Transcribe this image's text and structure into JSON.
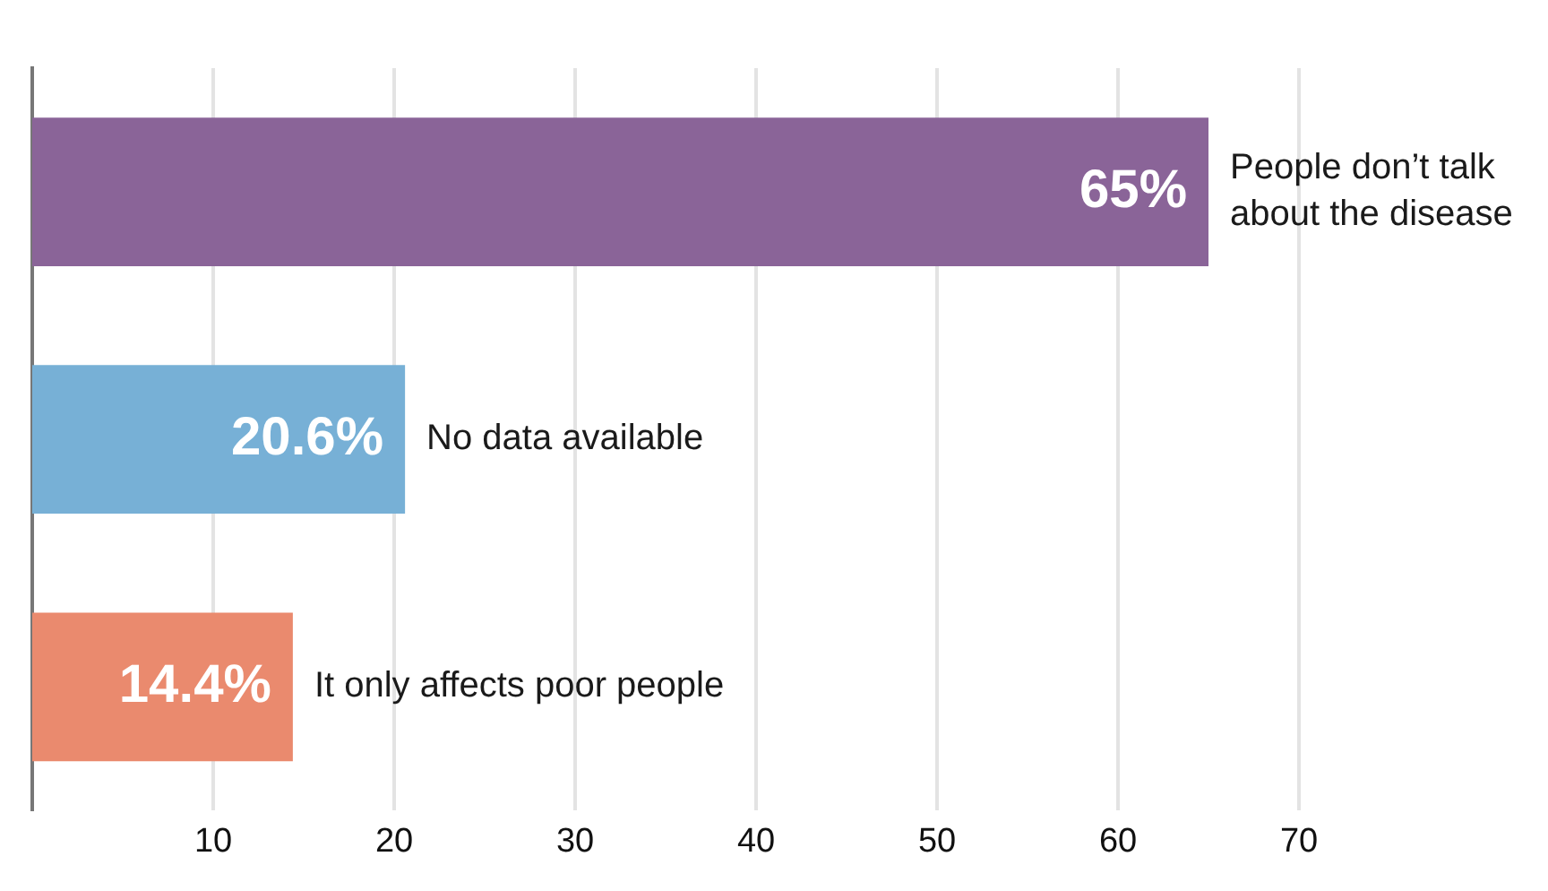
{
  "chart_data": {
    "type": "bar",
    "orientation": "horizontal",
    "categories": [
      "People don’t talk about the disease",
      "No data available",
      "It only affects poor people"
    ],
    "values": [
      65,
      20.6,
      14.4
    ],
    "colors": [
      "#8a6498",
      "#77b0d6",
      "#ea8a6e"
    ],
    "value_labels": [
      "65%",
      "20.6%",
      "14.4%"
    ],
    "xlim": [
      0,
      70
    ],
    "xticks": [
      10,
      20,
      30,
      40,
      50,
      60,
      70
    ],
    "grid": "x",
    "legend": false
  }
}
